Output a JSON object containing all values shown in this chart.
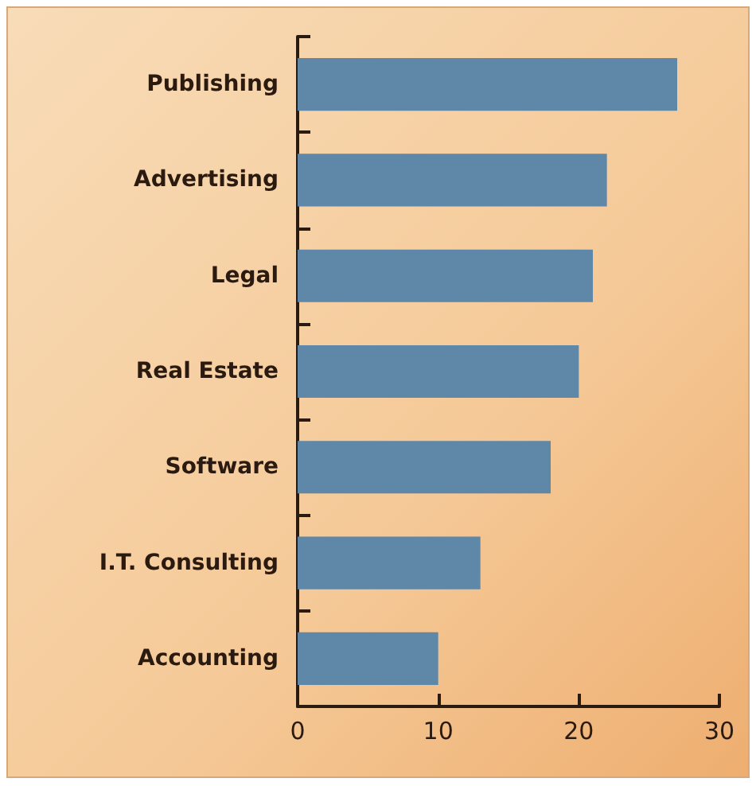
{
  "chart_data": {
    "type": "bar",
    "orientation": "horizontal",
    "categories": [
      "Publishing",
      "Advertising",
      "Legal",
      "Real Estate",
      "Software",
      "I.T. Consulting",
      "Accounting"
    ],
    "values": [
      27,
      22,
      21,
      20,
      18,
      13,
      10
    ],
    "color": "#5f88a8",
    "xlim": [
      0,
      30
    ],
    "xticks": [
      0,
      10,
      20,
      30
    ],
    "grid": false
  }
}
